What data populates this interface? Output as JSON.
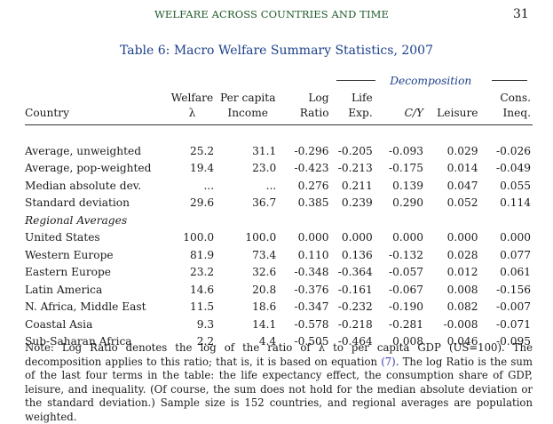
{
  "running_head": {
    "title": "WELFARE ACROSS COUNTRIES AND TIME",
    "page_number": "31"
  },
  "table_title": "Table 6: Macro Welfare Summary Statistics, 2007",
  "header": {
    "decomposition": "Decomposition",
    "country": "Country",
    "welfare_top": "Welfare",
    "welfare_bottom": "λ",
    "income_top": "Per capita",
    "income_bottom": "Income",
    "log_top": "Log",
    "log_bottom": "Ratio",
    "life_top": "Life",
    "life_bottom": "Exp.",
    "cy": "C/Y",
    "leisure": "Leisure",
    "ineq_top": "Cons.",
    "ineq_bottom": "Ineq."
  },
  "summary_rows": [
    {
      "country": "Average, unweighted",
      "welfare": "25.2",
      "income": "31.1",
      "log_ratio": "-0.296",
      "life_exp": "-0.205",
      "cy": "-0.093",
      "leisure": "0.029",
      "ineq": "-0.026"
    },
    {
      "country": "Average, pop-weighted",
      "welfare": "19.4",
      "income": "23.0",
      "log_ratio": "-0.423",
      "life_exp": "-0.213",
      "cy": "-0.175",
      "leisure": "0.014",
      "ineq": "-0.049"
    },
    {
      "country": "Median absolute dev.",
      "welfare": "...",
      "income": "...",
      "log_ratio": "0.276",
      "life_exp": "0.211",
      "cy": "0.139",
      "leisure": "0.047",
      "ineq": "0.055"
    },
    {
      "country": "Standard deviation",
      "welfare": "29.6",
      "income": "36.7",
      "log_ratio": "0.385",
      "life_exp": "0.239",
      "cy": "0.290",
      "leisure": "0.052",
      "ineq": "0.114"
    }
  ],
  "regional_label": "Regional Averages",
  "regional_rows": [
    {
      "country": "United States",
      "welfare": "100.0",
      "income": "100.0",
      "log_ratio": "0.000",
      "life_exp": "0.000",
      "cy": "0.000",
      "leisure": "0.000",
      "ineq": "0.000"
    },
    {
      "country": "Western Europe",
      "welfare": "81.9",
      "income": "73.4",
      "log_ratio": "0.110",
      "life_exp": "0.136",
      "cy": "-0.132",
      "leisure": "0.028",
      "ineq": "0.077"
    },
    {
      "country": "Eastern Europe",
      "welfare": "23.2",
      "income": "32.6",
      "log_ratio": "-0.348",
      "life_exp": "-0.364",
      "cy": "-0.057",
      "leisure": "0.012",
      "ineq": "0.061"
    },
    {
      "country": "Latin America",
      "welfare": "14.6",
      "income": "20.8",
      "log_ratio": "-0.376",
      "life_exp": "-0.161",
      "cy": "-0.067",
      "leisure": "0.008",
      "ineq": "-0.156"
    },
    {
      "country": "N. Africa, Middle East",
      "welfare": "11.5",
      "income": "18.6",
      "log_ratio": "-0.347",
      "life_exp": "-0.232",
      "cy": "-0.190",
      "leisure": "0.082",
      "ineq": "-0.007"
    },
    {
      "country": "Coastal Asia",
      "welfare": "9.3",
      "income": "14.1",
      "log_ratio": "-0.578",
      "life_exp": "-0.218",
      "cy": "-0.281",
      "leisure": "-0.008",
      "ineq": "-0.071"
    },
    {
      "country": "Sub-Saharan Africa",
      "welfare": "2.2",
      "income": "4.4",
      "log_ratio": "-0.505",
      "life_exp": "-0.464",
      "cy": "0.008",
      "leisure": "0.046",
      "ineq": "-0.095"
    }
  ],
  "notes": {
    "part1": "Note: Log Ratio denotes the log of the ratio of λ to per capita GDP (US=100). The decomposition applies to this ratio; that is, it is based on equation ",
    "eq_ref": "(7)",
    "part2": ". The log Ratio is the sum of the last four terms in the table: the life expectancy effect, the consumption share of GDP, leisure, and inequality. (Of course, the sum does not hold for the median absolute deviation or the standard deviation.) Sample size is 152 countries, and regional averages are population weighted."
  },
  "colors": {
    "running_head": "#1e5a2a",
    "title_blue": "#1c3f8a",
    "eq_ref": "#3d3fb0"
  }
}
